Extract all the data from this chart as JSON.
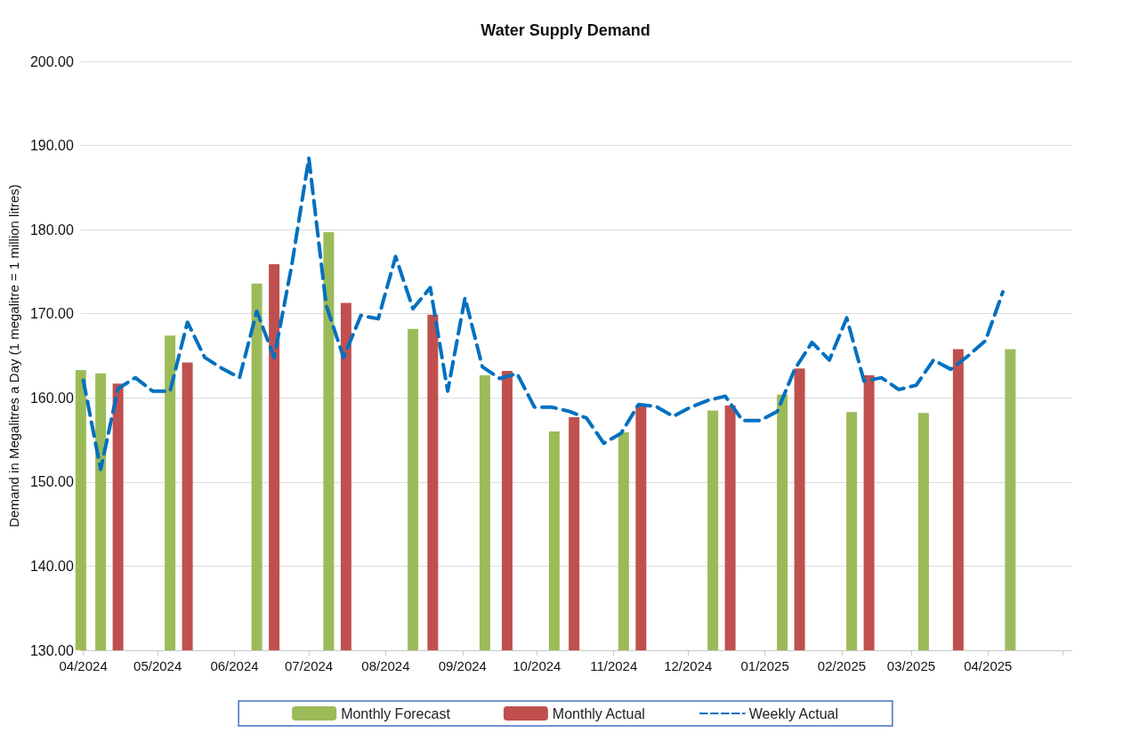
{
  "chart_data": {
    "type": "bar",
    "title": "Water Supply Demand",
    "ylabel": "Demand in Megalitres a Day (1 megalitre = 1 million litres)",
    "xlim": [
      "2024-03-31",
      "2025-05-05"
    ],
    "xticks": [
      {
        "value": "2024-04-01",
        "label": "04/2024"
      },
      {
        "value": "2024-05-01",
        "label": "05/2024"
      },
      {
        "value": "2024-06-01",
        "label": "06/2024"
      },
      {
        "value": "2024-07-01",
        "label": "07/2024"
      },
      {
        "value": "2024-08-01",
        "label": "08/2024"
      },
      {
        "value": "2024-09-01",
        "label": "09/2024"
      },
      {
        "value": "2024-10-01",
        "label": "10/2024"
      },
      {
        "value": "2024-11-01",
        "label": "11/2024"
      },
      {
        "value": "2024-12-01",
        "label": "12/2024"
      },
      {
        "value": "2025-01-01",
        "label": "01/2025"
      },
      {
        "value": "2025-02-01",
        "label": "02/2025"
      },
      {
        "value": "2025-03-01",
        "label": "03/2025"
      },
      {
        "value": "2025-04-01",
        "label": "04/2025"
      },
      {
        "value": "2025-05-01",
        "label": null
      }
    ],
    "ylim": [
      130,
      200
    ],
    "yticks": [
      {
        "value": 130,
        "label": "130.00"
      },
      {
        "value": 140,
        "label": "140.00"
      },
      {
        "value": 150,
        "label": "150.00"
      },
      {
        "value": 160,
        "label": "160.00"
      },
      {
        "value": 170,
        "label": "170.00"
      },
      {
        "value": 180,
        "label": "180.00"
      },
      {
        "value": 190,
        "label": "190.00"
      },
      {
        "value": 200,
        "label": "200.00"
      }
    ],
    "grid": "y",
    "legend": "bottom",
    "marker": "none",
    "series": [
      {
        "name": "Monthly Forecast",
        "color": "#9bbb59",
        "x": [
          "2024-03-31",
          "2024-04-08",
          "2024-05-06",
          "2024-06-10",
          "2024-07-09",
          "2024-08-12",
          "2024-09-10",
          "2024-10-08",
          "2024-11-05",
          "2024-12-11",
          "2025-01-08",
          "2025-02-05",
          "2025-03-06",
          "2025-04-10"
        ],
        "values": [
          163.3,
          162.9,
          167.4,
          173.6,
          179.7,
          168.2,
          162.7,
          156.0,
          155.9,
          158.5,
          160.4,
          158.3,
          158.2,
          165.8
        ]
      },
      {
        "name": "Monthly Actual",
        "color": "#c0504d",
        "x": [
          "2024-04-15",
          "2024-05-13",
          "2024-06-17",
          "2024-07-16",
          "2024-08-20",
          "2024-09-19",
          "2024-10-16",
          "2024-11-12",
          "2024-12-18",
          "2025-01-15",
          "2025-02-12",
          "2025-03-20"
        ],
        "values": [
          161.7,
          164.2,
          175.9,
          171.3,
          169.9,
          163.2,
          157.7,
          159.1,
          159.1,
          163.5,
          162.7,
          165.8
        ]
      },
      {
        "name": "Weekly Actual",
        "type": "line",
        "color": "#0070c0",
        "line_style": "dashed",
        "x": [
          "2024-04-01",
          "2024-04-08",
          "2024-04-15",
          "2024-04-22",
          "2024-04-29",
          "2024-05-06",
          "2024-05-13",
          "2024-05-20",
          "2024-05-27",
          "2024-06-03",
          "2024-06-10",
          "2024-06-17",
          "2024-06-24",
          "2024-07-01",
          "2024-07-08",
          "2024-07-15",
          "2024-07-22",
          "2024-07-29",
          "2024-08-05",
          "2024-08-12",
          "2024-08-19",
          "2024-08-26",
          "2024-09-02",
          "2024-09-09",
          "2024-09-16",
          "2024-09-23",
          "2024-09-30",
          "2024-10-07",
          "2024-10-14",
          "2024-10-21",
          "2024-10-28",
          "2024-11-04",
          "2024-11-11",
          "2024-11-18",
          "2024-11-25",
          "2024-12-02",
          "2024-12-09",
          "2024-12-16",
          "2024-12-23",
          "2024-12-30",
          "2025-01-06",
          "2025-01-13",
          "2025-01-20",
          "2025-01-27",
          "2025-02-03",
          "2025-02-10",
          "2025-02-17",
          "2025-02-24",
          "2025-03-03",
          "2025-03-10",
          "2025-03-17",
          "2025-03-24",
          "2025-03-31",
          "2025-04-07"
        ],
        "values": [
          162.1,
          151.5,
          161.1,
          162.4,
          160.8,
          160.8,
          169.0,
          164.8,
          163.5,
          162.4,
          170.3,
          164.8,
          175.6,
          188.5,
          171.0,
          164.8,
          169.8,
          169.4,
          176.8,
          170.6,
          173.1,
          160.8,
          171.9,
          163.7,
          162.3,
          162.9,
          158.9,
          158.9,
          158.4,
          157.6,
          154.6,
          155.8,
          159.2,
          159.0,
          157.8,
          158.9,
          159.7,
          160.2,
          157.3,
          157.3,
          158.4,
          163.4,
          166.6,
          164.5,
          169.5,
          162.0,
          162.4,
          161.0,
          161.5,
          164.5,
          163.4,
          165.0,
          166.8,
          172.6
        ]
      }
    ]
  }
}
